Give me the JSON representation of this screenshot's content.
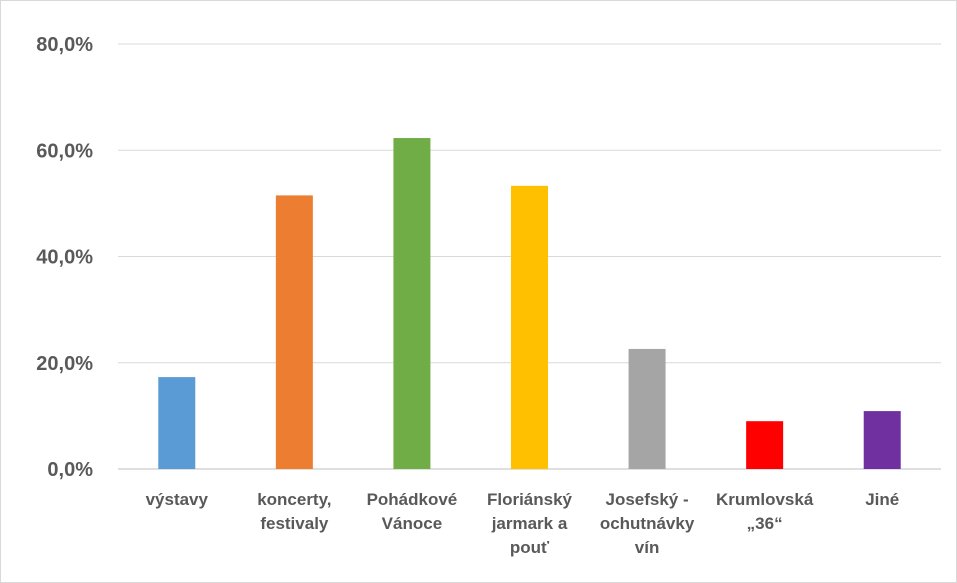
{
  "chart_data": {
    "type": "bar",
    "categories": [
      [
        "výstavy"
      ],
      [
        "koncerty,",
        "festivaly"
      ],
      [
        "Pohádkové",
        "Vánoce"
      ],
      [
        "Floriánský",
        "jarmark a",
        "pouť"
      ],
      [
        "Josefský -",
        "ochutnávky",
        "vín"
      ],
      [
        "Krumlovská",
        "„36“"
      ],
      [
        "Jiné"
      ]
    ],
    "values": [
      17.3,
      51.5,
      62.3,
      53.3,
      22.6,
      9.0,
      10.9
    ],
    "colors": [
      "#5b9bd5",
      "#ed7d31",
      "#70ad47",
      "#ffc000",
      "#a5a5a5",
      "#ff0000",
      "#7030a0"
    ],
    "ylim": [
      0,
      80
    ],
    "yticks": [
      0,
      20,
      40,
      60,
      80
    ],
    "ytick_labels": [
      "0,0%",
      "20,0%",
      "40,0%",
      "60,0%",
      "80,0%"
    ],
    "grid": true,
    "legend": "none"
  }
}
